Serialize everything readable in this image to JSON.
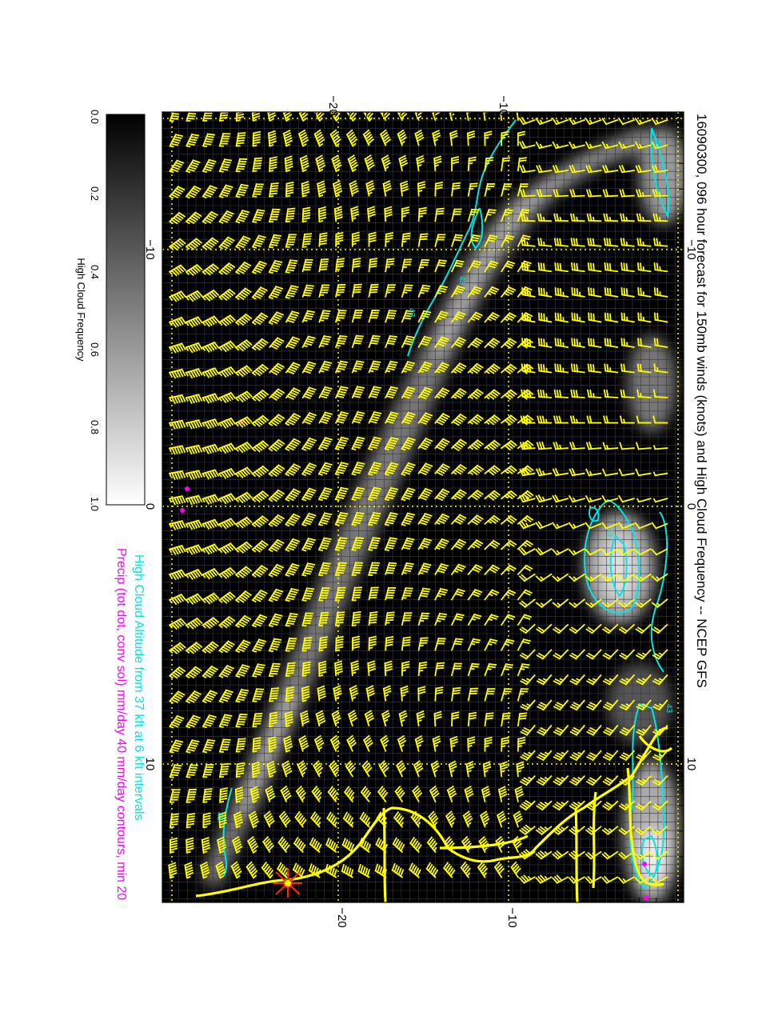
{
  "title": "16090300, 096 hour forecast for 150mb winds (knots) and High Cloud Frequency -- NCEP GFS",
  "legend": {
    "cyan_line": "High Cloud Altitude from 37 kft at 6 kft intervals",
    "magenta_line": "Precip (tot dot, conv sol) mm/day 40 mm/day contours, min 20"
  },
  "colorbar": {
    "label": "High Cloud Frequency",
    "ticks": [
      "0.0",
      "0.2",
      "0.4",
      "0.6",
      "0.8",
      "1.0"
    ],
    "range": [
      0.0,
      1.0
    ]
  },
  "axes": {
    "top_ticks": [
      "−20",
      "−10"
    ],
    "bottom_ticks": [
      "−20",
      "−10"
    ],
    "left_ticks": [
      "−10",
      "0",
      "10"
    ],
    "right_ticks": [
      "−10",
      "0",
      "10"
    ]
  },
  "contour_labels": [
    "43",
    "43",
    "43",
    "43",
    "43",
    "43"
  ],
  "colors": {
    "barbs": "#ffff00",
    "coastline": "#ffff00",
    "cloud_contours": "#00e5e5",
    "precip": "#ff00ff",
    "background": "#000000",
    "marker": "#ff0000"
  }
}
